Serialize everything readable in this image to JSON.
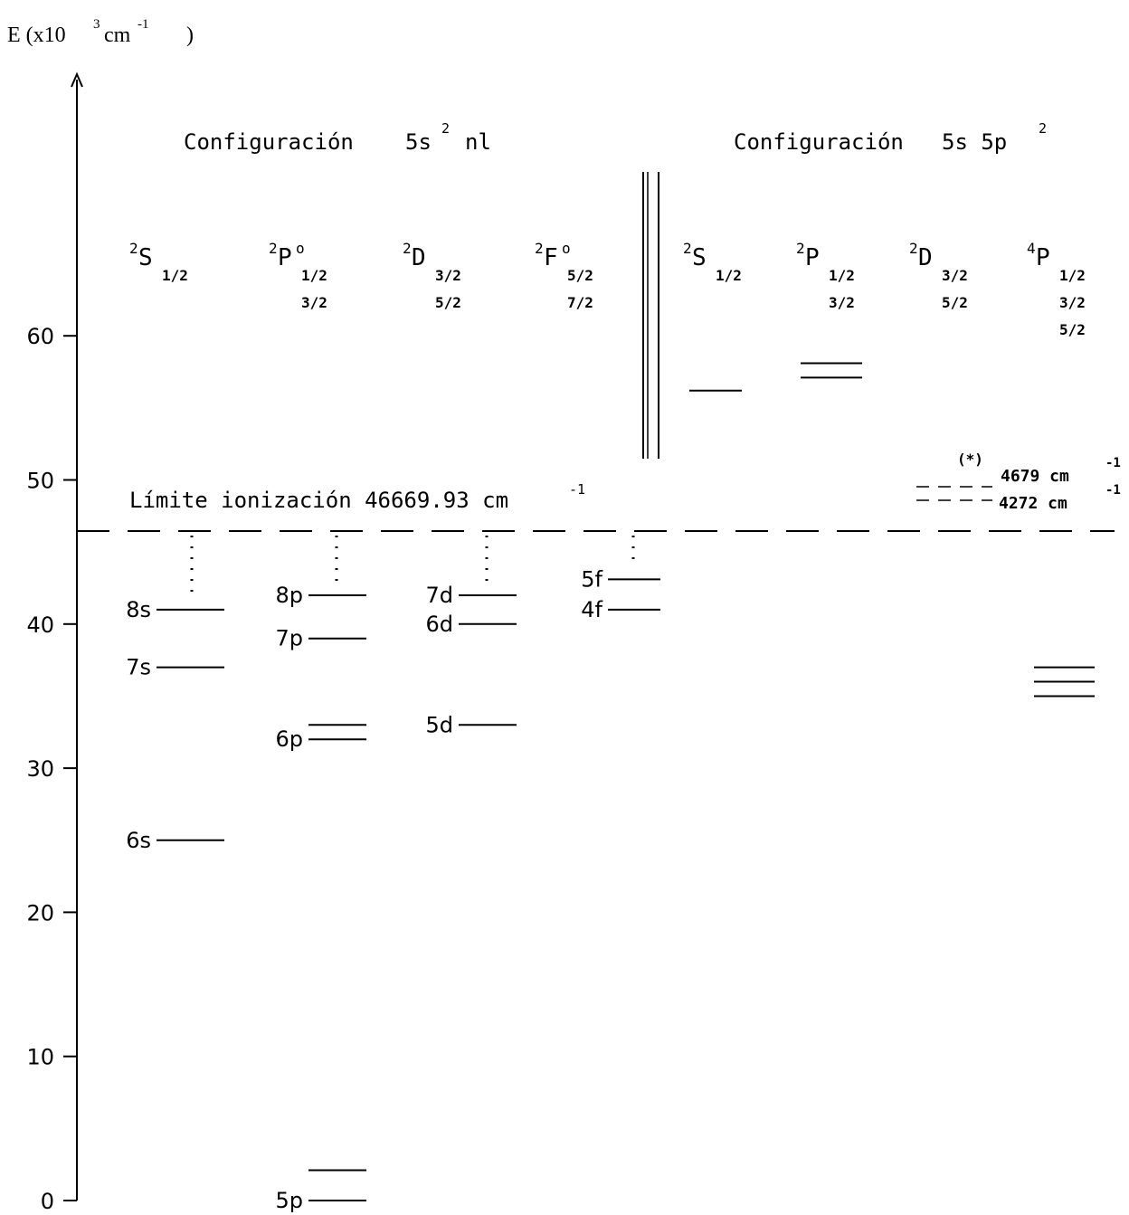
{
  "axis": {
    "label_main": "E (x10",
    "label_exp": "3",
    "label_unit": "cm",
    "label_unit_exp": "-1",
    "label_close": ")",
    "ticks": [
      "0",
      "10",
      "20",
      "30",
      "40",
      "50",
      "60"
    ]
  },
  "headers": {
    "left_title": "Configuración",
    "left_config_a": "5s",
    "left_config_exp": "2",
    "left_config_b": "nl",
    "right_title": "Configuración",
    "right_config_a": "5s 5p",
    "right_config_exp": "2"
  },
  "terms": [
    {
      "pre": "2",
      "letter": "S",
      "deg": "",
      "j1": "1/2",
      "j2": "",
      "j3": ""
    },
    {
      "pre": "2",
      "letter": "P",
      "deg": "o",
      "j1": "1/2",
      "j2": "3/2",
      "j3": ""
    },
    {
      "pre": "2",
      "letter": "D",
      "deg": "",
      "j1": "3/2",
      "j2": "5/2",
      "j3": ""
    },
    {
      "pre": "2",
      "letter": "F",
      "deg": "o",
      "j1": "5/2",
      "j2": "7/2",
      "j3": ""
    },
    {
      "pre": "2",
      "letter": "S",
      "deg": "",
      "j1": "1/2",
      "j2": "",
      "j3": ""
    },
    {
      "pre": "2",
      "letter": "P",
      "deg": "",
      "j1": "1/2",
      "j2": "3/2",
      "j3": ""
    },
    {
      "pre": "2",
      "letter": "D",
      "deg": "",
      "j1": "3/2",
      "j2": "5/2",
      "j3": ""
    },
    {
      "pre": "4",
      "letter": "P",
      "deg": "",
      "j1": "1/2",
      "j2": "3/2",
      "j3": "5/2"
    }
  ],
  "ionization": {
    "text": "Límite ionización 46669.93 cm",
    "exp": "-1"
  },
  "levels": [
    {
      "label": "6s",
      "energy": 25.0
    },
    {
      "label": "7s",
      "energy": 37.0
    },
    {
      "label": "8s",
      "energy": 41.0
    },
    {
      "label": "5p",
      "energy": 0.0
    },
    {
      "label": "",
      "energy": 2.1
    },
    {
      "label": "6p",
      "energy": 32.0
    },
    {
      "label": "",
      "energy": 33.0
    },
    {
      "label": "7p",
      "energy": 39.0
    },
    {
      "label": "8p",
      "energy": 42.0
    },
    {
      "label": "5d",
      "energy": 33.0
    },
    {
      "label": "6d",
      "energy": 40.0
    },
    {
      "label": "7d",
      "energy": 42.0
    },
    {
      "label": "4f",
      "energy": 41.0
    },
    {
      "label": "5f",
      "energy": 43.1
    },
    {
      "label": "",
      "energy": 56.2
    },
    {
      "label": "",
      "energy": 57.1
    },
    {
      "label": "",
      "energy": 58.1
    },
    {
      "label": "",
      "energy": 35.0
    },
    {
      "label": "",
      "energy": 36.0
    },
    {
      "label": "",
      "energy": 37.0
    }
  ],
  "uncertain": {
    "note": "(*)",
    "value_a": "4679 cm",
    "value_b": "4272 cm",
    "exp": "-1"
  }
}
